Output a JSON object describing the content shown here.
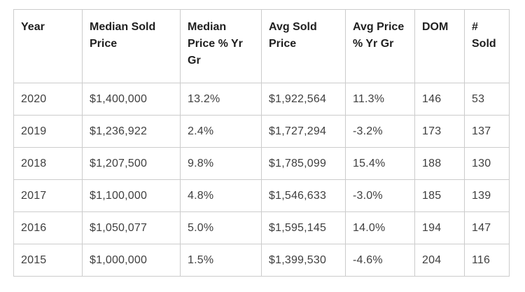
{
  "colors": {
    "background": "#ffffff",
    "border": "#cccccc",
    "header_text": "#1f1f1f",
    "body_text": "#3f3f3f"
  },
  "chart_data": {
    "type": "table",
    "columns": [
      "Year",
      "Median Sold Price",
      "Median Price % Yr Gr",
      "Avg Sold Price",
      "Avg Price % Yr Gr",
      "DOM",
      "# Sold"
    ],
    "column_slugs": [
      "year",
      "median-sold-price",
      "median-price-pct-yr-gr",
      "avg-sold-price",
      "avg-price-pct-yr-gr",
      "dom",
      "num-sold"
    ],
    "rows": [
      [
        "2020",
        "$1,400,000",
        "13.2%",
        "$1,922,564",
        "11.3%",
        "146",
        "53"
      ],
      [
        "2019",
        "$1,236,922",
        "2.4%",
        "$1,727,294",
        "-3.2%",
        "173",
        "137"
      ],
      [
        "2018",
        "$1,207,500",
        "9.8%",
        "$1,785,099",
        "15.4%",
        "188",
        "130"
      ],
      [
        "2017",
        "$1,100,000",
        "4.8%",
        "$1,546,633",
        "-3.0%",
        "185",
        "139"
      ],
      [
        "2016",
        "$1,050,077",
        "5.0%",
        "$1,595,145",
        "14.0%",
        "194",
        "147"
      ],
      [
        "2015",
        "$1,000,000",
        "1.5%",
        "$1,399,530",
        "-4.6%",
        "204",
        "116"
      ]
    ]
  }
}
